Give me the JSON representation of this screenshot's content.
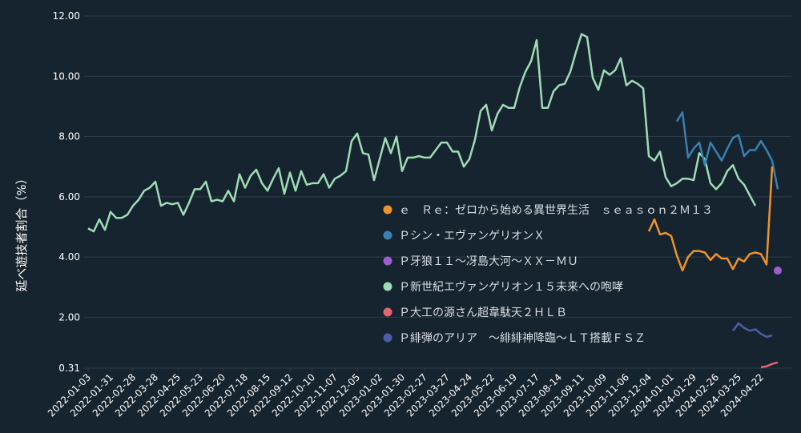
{
  "chart_data": {
    "type": "line",
    "title": "",
    "xlabel": "",
    "ylabel": "延べ遊技者割合（%）",
    "ylim": [
      0.31,
      12.6
    ],
    "yticks": [
      0.31,
      2.0,
      4.0,
      6.0,
      8.0,
      10.0,
      12.0
    ],
    "ytick_labels": [
      "0.31",
      "2.00",
      "4.00",
      "6.00",
      "8.00",
      "10.00",
      "12.00"
    ],
    "x_start": "2022-01-03",
    "x_step_days": 7,
    "xtick_labels": [
      "2022-01-03",
      "2022-01-31",
      "2022-02-28",
      "2022-03-28",
      "2022-04-25",
      "2022-05-23",
      "2022-06-20",
      "2022-07-18",
      "2022-08-15",
      "2022-09-12",
      "2022-10-10",
      "2022-11-07",
      "2022-12-05",
      "2023-01-02",
      "2023-01-30",
      "2023-02-27",
      "2023-03-27",
      "2023-04-24",
      "2023-05-22",
      "2023-06-19",
      "2023-07-17",
      "2023-08-14",
      "2023-09-11",
      "2023-10-09",
      "2023-11-06",
      "2023-12-04",
      "2024-01-01",
      "2024-01-29",
      "2024-02-26",
      "2024-03-25",
      "2024-04-22"
    ],
    "grid": true,
    "legend_position": "center-right",
    "series": [
      {
        "name": "ｅ　Ｒｅ：ゼロから始める異世界生活　ｓｅａｓｏｎ２Ｍ１３",
        "color": "#f0922e",
        "start_index": 100,
        "values": [
          4.85,
          5.25,
          4.75,
          4.8,
          4.7,
          4.05,
          3.55,
          4.0,
          4.2,
          4.2,
          4.15,
          3.9,
          4.1,
          3.95,
          3.95,
          3.6,
          3.95,
          3.85,
          4.1,
          4.15,
          4.1,
          3.75,
          7.0
        ]
      },
      {
        "name": "Ｐシン・エヴァンゲリオンＸ",
        "color": "#3b80b0",
        "start_index": 105,
        "values": [
          8.5,
          8.8,
          7.3,
          7.6,
          7.8,
          7.05,
          7.8,
          7.5,
          7.2,
          7.6,
          7.95,
          8.05,
          7.35,
          7.55,
          7.55,
          7.85,
          7.55,
          7.2,
          6.25
        ]
      },
      {
        "name": "Ｐ牙狼１１～冴島大河～ＸＸ－ＭＵ",
        "color": "#9b5fce",
        "start_index": 123,
        "values": [
          3.55
        ]
      },
      {
        "name": "Ｐ新世紀エヴァンゲリオン１５未来への咆哮",
        "color": "#9fdcb4",
        "start_index": 0,
        "values": [
          4.95,
          4.85,
          5.25,
          4.9,
          5.5,
          5.3,
          5.3,
          5.4,
          5.7,
          5.9,
          6.2,
          6.3,
          6.5,
          5.7,
          5.8,
          5.75,
          5.8,
          5.4,
          5.8,
          6.25,
          6.25,
          6.5,
          5.85,
          5.9,
          5.85,
          6.2,
          5.85,
          6.75,
          6.3,
          6.7,
          6.9,
          6.45,
          6.2,
          6.6,
          6.95,
          6.1,
          6.8,
          6.2,
          6.85,
          6.4,
          6.45,
          6.45,
          6.75,
          6.3,
          6.6,
          6.7,
          6.85,
          7.85,
          8.1,
          7.45,
          7.4,
          6.55,
          7.25,
          7.95,
          7.45,
          8.0,
          6.85,
          7.3,
          7.3,
          7.35,
          7.3,
          7.3,
          7.55,
          7.8,
          7.8,
          7.5,
          7.5,
          7.0,
          7.25,
          7.9,
          8.85,
          9.05,
          8.2,
          8.75,
          9.05,
          8.95,
          8.95,
          9.65,
          10.15,
          10.5,
          11.2,
          8.95,
          8.95,
          9.5,
          9.7,
          9.75,
          10.15,
          10.8,
          11.4,
          11.3,
          9.95,
          9.55,
          10.2,
          10.05,
          10.2,
          10.6,
          9.7,
          9.85,
          9.75,
          9.6,
          7.35,
          7.2,
          7.5,
          6.65,
          6.35,
          6.45,
          6.6,
          6.6,
          6.55,
          7.45,
          7.25,
          6.45,
          6.25,
          6.45,
          6.85,
          7.05,
          6.6,
          6.4,
          6.05,
          5.7
        ]
      },
      {
        "name": "Ｐ大工の源さん超韋駄天２ＨＬＢ",
        "color": "#e0656e",
        "start_index": 120,
        "values": [
          0.34,
          0.37,
          0.45,
          0.5
        ]
      },
      {
        "name": "Ｐ緋弾のアリア　～緋緋神降臨～ＬＴ搭載ＦＳＺ",
        "color": "#4a5ea8",
        "start_index": 115,
        "values": [
          1.55,
          1.8,
          1.65,
          1.55,
          1.6,
          1.45,
          1.35,
          1.4
        ]
      }
    ]
  }
}
